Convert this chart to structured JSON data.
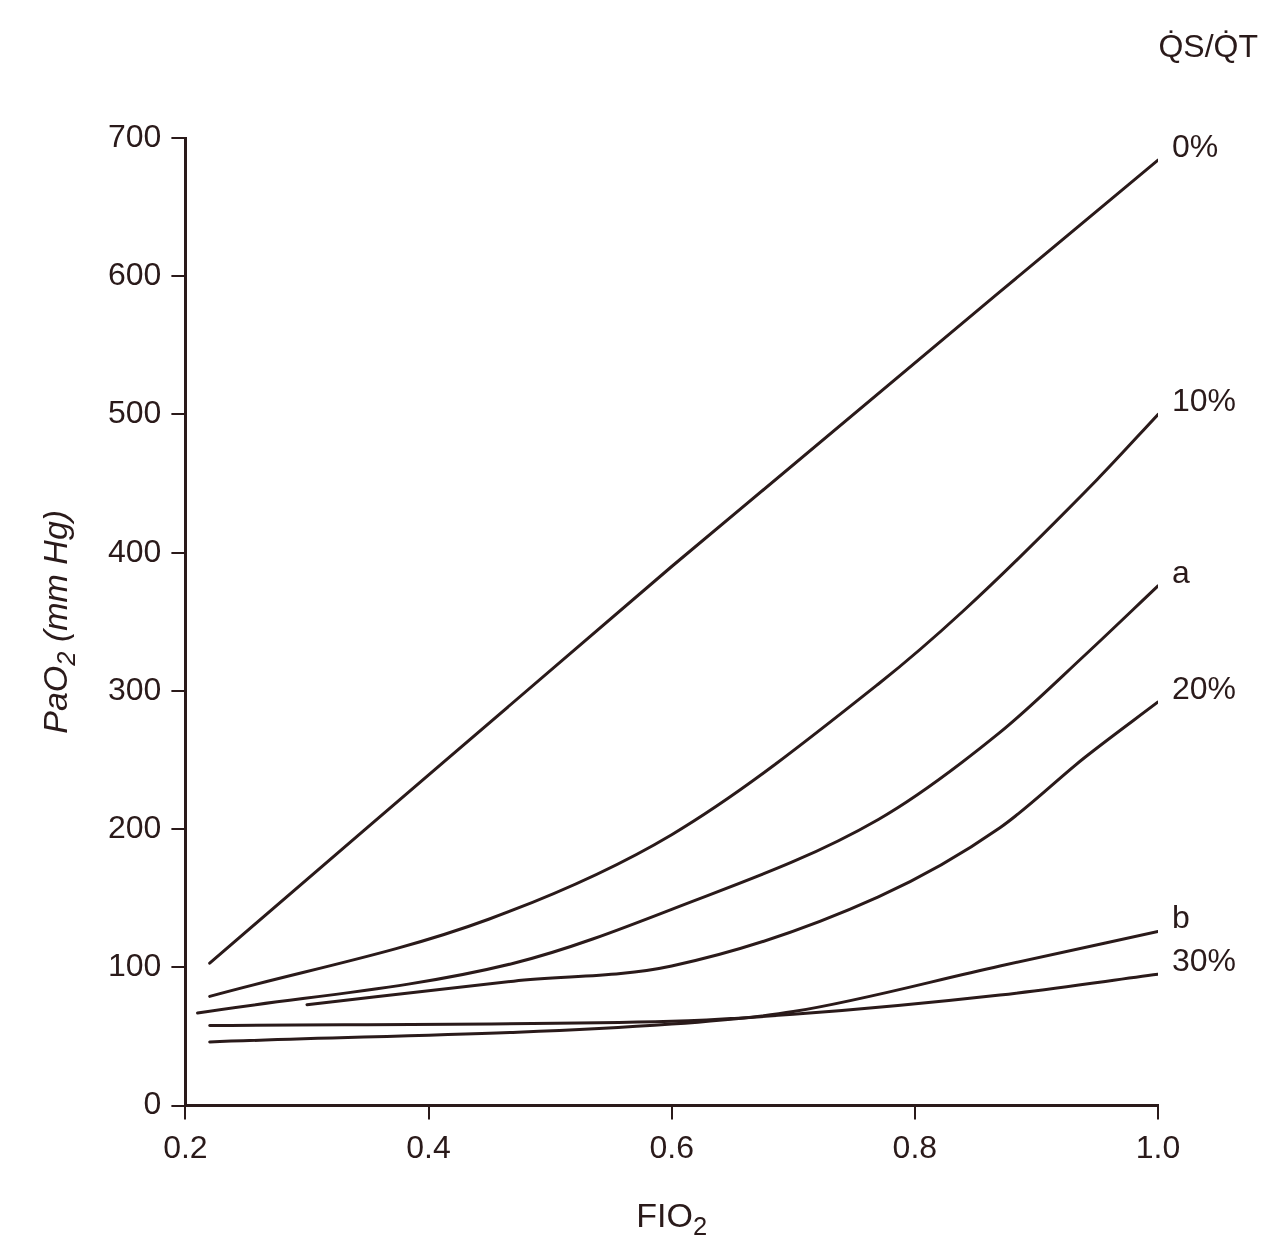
{
  "chart_data": {
    "type": "line",
    "xlabel": "FIO$_{2}$",
    "ylabel": "PaO$_{2}$ (mm Hg)",
    "legend_title": "Q̇S/Q̇T",
    "xlim": [
      0.2,
      1.0
    ],
    "ylim": [
      0,
      700
    ],
    "xticks": [
      0.2,
      0.4,
      0.6,
      0.8,
      {
        "value": 1.0,
        "label": "1.0"
      }
    ],
    "yticks": [
      0,
      100,
      200,
      300,
      400,
      500,
      600,
      700
    ],
    "grid": false,
    "legend": false,
    "marker": "none",
    "line_style": "solid",
    "series": [
      {
        "name": "0%",
        "color": "#2a1a1a",
        "x": [
          0.22,
          0.6,
          1.0
        ],
        "values": [
          103,
          390,
          684
        ]
      },
      {
        "name": "10%",
        "color": "#2a1a1a",
        "x": [
          0.22,
          0.45,
          0.6,
          0.77,
          0.84,
          0.95,
          1.0
        ],
        "values": [
          79,
          135,
          196,
          305,
          358,
          453,
          500
        ]
      },
      {
        "name": "a",
        "color": "#2a1a1a",
        "x": [
          0.21,
          0.47,
          0.6,
          0.77,
          0.87,
          0.94,
          1.0
        ],
        "values": [
          67,
          103,
          142,
          207,
          270,
          326,
          376
        ]
      },
      {
        "name": "20%",
        "color": "#2a1a1a",
        "x": [
          0.3,
          0.47,
          0.6,
          0.77,
          0.87,
          0.94,
          1.0
        ],
        "values": [
          73,
          90,
          101,
          151,
          201,
          252,
          292
        ]
      },
      {
        "name": "b",
        "color": "#2a1a1a",
        "x": [
          0.22,
          0.6,
          0.7,
          0.87,
          1.0
        ],
        "values": [
          46,
          59,
          68,
          101,
          126
        ]
      },
      {
        "name": "30%",
        "color": "#2a1a1a",
        "x": [
          0.22,
          0.6,
          0.7,
          0.87,
          1.0
        ],
        "values": [
          58,
          61,
          66,
          80,
          95
        ]
      }
    ]
  }
}
